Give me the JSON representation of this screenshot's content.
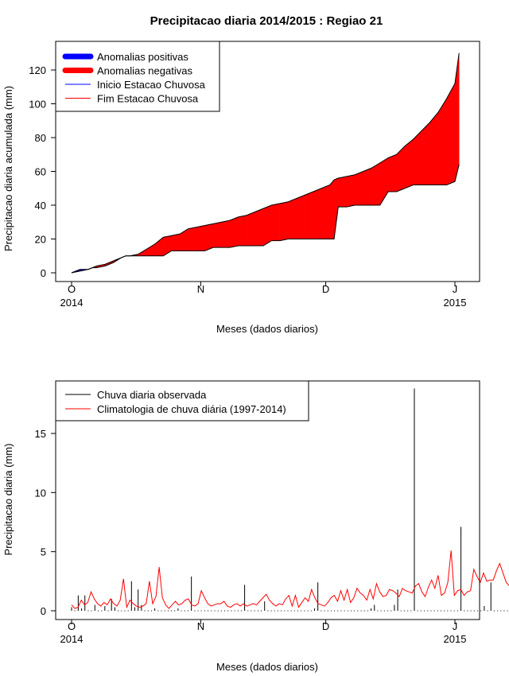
{
  "title": "Precipitacao diaria 2014/2015 : Regiao 21",
  "chart_data": [
    {
      "type": "area",
      "xlabel": "Meses (dados diarios)",
      "ylabel": "Precipitacao diaria acumulada (mm)",
      "ylim": [
        0,
        130
      ],
      "yticks": [
        0,
        20,
        40,
        60,
        80,
        100,
        120
      ],
      "xlim": [
        0,
        122
      ],
      "xticks": [
        {
          "day": 0,
          "month": "O",
          "year": "2014"
        },
        {
          "day": 31,
          "month": "N",
          "year": ""
        },
        {
          "day": 61,
          "month": "D",
          "year": ""
        },
        {
          "day": 92,
          "month": "J",
          "year": "2015"
        }
      ],
      "legend": {
        "position": "top-left",
        "entries": [
          {
            "label": "Anomalias positivas",
            "color": "#0000ff",
            "kind": "thick"
          },
          {
            "label": "Anomalias negativas",
            "color": "#ff0000",
            "kind": "thick"
          },
          {
            "label": "Inicio Estacao Chuvosa",
            "color": "#0000ff",
            "kind": "line"
          },
          {
            "label": "Fim Estacao Chuvosa",
            "color": "#ff0000",
            "kind": "line"
          }
        ]
      },
      "series": [
        {
          "name": "Observado acumulado",
          "day": [
            0,
            2,
            4,
            5,
            6,
            8,
            10,
            12,
            13,
            14,
            16,
            18,
            20,
            22,
            24,
            26,
            28,
            30,
            32,
            34,
            36,
            38,
            40,
            42,
            44,
            46,
            48,
            50,
            52,
            54,
            55,
            56,
            58,
            60,
            62,
            63,
            64,
            66,
            68,
            70,
            72,
            74,
            76,
            78,
            80,
            82,
            84,
            86,
            88,
            90,
            92,
            93
          ],
          "values": [
            0,
            2,
            2,
            3,
            3,
            4,
            6,
            9,
            10,
            10,
            10,
            10,
            10,
            10,
            13,
            13,
            13,
            13,
            13,
            15,
            15,
            15,
            16,
            16,
            16,
            16,
            19,
            19,
            20,
            20,
            20,
            20,
            20,
            20,
            20,
            20,
            39,
            39,
            40,
            40,
            40,
            40,
            48,
            48,
            50,
            52,
            52,
            52,
            52,
            52,
            54,
            64
          ]
        },
        {
          "name": "Climatologia acumulada",
          "day": [
            0,
            2,
            4,
            5,
            6,
            8,
            10,
            12,
            13,
            14,
            16,
            18,
            20,
            22,
            24,
            26,
            28,
            30,
            32,
            34,
            36,
            38,
            40,
            42,
            44,
            46,
            48,
            50,
            52,
            54,
            55,
            56,
            58,
            60,
            62,
            63,
            64,
            66,
            68,
            70,
            72,
            74,
            76,
            78,
            80,
            82,
            84,
            86,
            88,
            90,
            92,
            93
          ],
          "values": [
            0,
            1,
            2,
            3,
            4,
            5,
            7,
            9,
            10,
            10,
            11,
            14,
            17,
            21,
            22,
            23,
            26,
            27,
            28,
            29,
            30,
            31,
            33,
            34,
            36,
            38,
            40,
            41,
            42,
            44,
            45,
            46,
            48,
            50,
            52,
            55,
            56,
            57,
            58,
            60,
            62,
            65,
            68,
            70,
            75,
            79,
            84,
            89,
            95,
            103,
            112,
            130
          ]
        }
      ]
    },
    {
      "type": "line",
      "xlabel": "Meses (dados diarios)",
      "ylabel": "Precipitacao diaria (mm)",
      "ylim": [
        0,
        19
      ],
      "yticks": [
        0,
        5,
        10,
        15
      ],
      "xlim": [
        0,
        123
      ],
      "xticks": [
        {
          "day": 0,
          "month": "O",
          "year": "2014"
        },
        {
          "day": 31,
          "month": "N",
          "year": ""
        },
        {
          "day": 61,
          "month": "D",
          "year": ""
        },
        {
          "day": 92,
          "month": "J",
          "year": "2015"
        }
      ],
      "legend": {
        "position": "top-left",
        "entries": [
          {
            "label": "Chuva diaria observada",
            "color": "#000000",
            "kind": "line"
          },
          {
            "label": "Climatologia de chuva diária (1997-2014)",
            "color": "#ff0000",
            "kind": "line"
          }
        ]
      },
      "series": [
        {
          "name": "Chuva diaria observada",
          "type": "bar",
          "values": [
            0.3,
            0,
            1.3,
            0.2,
            1.3,
            0.1,
            0,
            0.5,
            0,
            0,
            0.4,
            0,
            1.0,
            0.3,
            0.1,
            0,
            0,
            0,
            2.5,
            0.3,
            1.8,
            0.5,
            0,
            0,
            0,
            0.2,
            0,
            0,
            0,
            0,
            0,
            0,
            0.2,
            0.1,
            0,
            0,
            2.9,
            0,
            0,
            0,
            0,
            0,
            0,
            0,
            0,
            0,
            0,
            0,
            0,
            0,
            0.1,
            0,
            2.2,
            0,
            0,
            0,
            0.1,
            0,
            0.8,
            0,
            0,
            0,
            0,
            0,
            0,
            0,
            0,
            0.1,
            0,
            0,
            0,
            0,
            0,
            0.2,
            2.4,
            0,
            0,
            0.1,
            0,
            0,
            0.1,
            0,
            0.1,
            0,
            0,
            0,
            0,
            0,
            0,
            0.1,
            0.2,
            0.5,
            0.1,
            0.1,
            0,
            0,
            0,
            0.5,
            1.8,
            0,
            0,
            0,
            0,
            18.8,
            0.1,
            0,
            0,
            0,
            0,
            0,
            0,
            0,
            0,
            0,
            0,
            0,
            0,
            7.1,
            0.1,
            0,
            0,
            0,
            0.1,
            0,
            0.4,
            0,
            2.4,
            0,
            0,
            0,
            0.1,
            0,
            0.1,
            0,
            0,
            0,
            0.5,
            0,
            0,
            0.1,
            0.1,
            0,
            0.1,
            0,
            0,
            0,
            0,
            7.0,
            5.1,
            0,
            0,
            0,
            0,
            0
          ]
        },
        {
          "name": "Climatologia de chuva diária (1997-2014)",
          "type": "line",
          "values": [
            0.5,
            0.2,
            0.3,
            0.9,
            0.5,
            0.7,
            1.6,
            1.0,
            0.6,
            0.4,
            0.7,
            0.5,
            1.0,
            0.6,
            0.4,
            0.9,
            2.7,
            0.3,
            0.9,
            0.6,
            0.4,
            0.3,
            0.4,
            0.6,
            2.5,
            0.6,
            1.2,
            3.7,
            1.1,
            0.5,
            0.2,
            0.5,
            0.8,
            0.5,
            0.6,
            0.9,
            1.0,
            0.5,
            0.4,
            0.6,
            1.7,
            1.1,
            0.6,
            0.4,
            0.5,
            0.6,
            0.6,
            0.8,
            0.4,
            0.3,
            0.5,
            0.6,
            0.4,
            0.6,
            0.4,
            0.5,
            0.6,
            0.5,
            0.8,
            1.1,
            1.4,
            0.9,
            0.6,
            0.4,
            0.6,
            0.5,
            1.0,
            1.3,
            0.4,
            1.3,
            0.3,
            0.7,
            1.1,
            0.8,
            1.8,
            1.1,
            0.6,
            0.5,
            0.4,
            0.7,
            1.1,
            1.3,
            0.8,
            1.7,
            0.9,
            1.8,
            0.7,
            1.1,
            1.9,
            1.5,
            1.3,
            0.9,
            1.8,
            1.0,
            2.3,
            1.6,
            1.2,
            1.3,
            1.8,
            1.7,
            1.5,
            1.2,
            1.9,
            1.7,
            1.6,
            1.5,
            2.1,
            2.3,
            1.6,
            1.2,
            2.0,
            2.6,
            1.9,
            3.0,
            1.3,
            1.5,
            2.4,
            5.1,
            1.3,
            1.7,
            1.8,
            1.3,
            1.6,
            1.7,
            3.5,
            2.9,
            2.4,
            3.2,
            2.5,
            2.6,
            2.6,
            3.4,
            4.0,
            3.2,
            2.4,
            2.1,
            2.7,
            4.0,
            3.2,
            2.4,
            2.3,
            3.1,
            4.3,
            6.0,
            3.6,
            3.0,
            4.4,
            4.3,
            2.6,
            2.8,
            3.6,
            4.7,
            3.9,
            3.6,
            3.6,
            3.7,
            3.4,
            2.8
          ]
        }
      ]
    }
  ]
}
